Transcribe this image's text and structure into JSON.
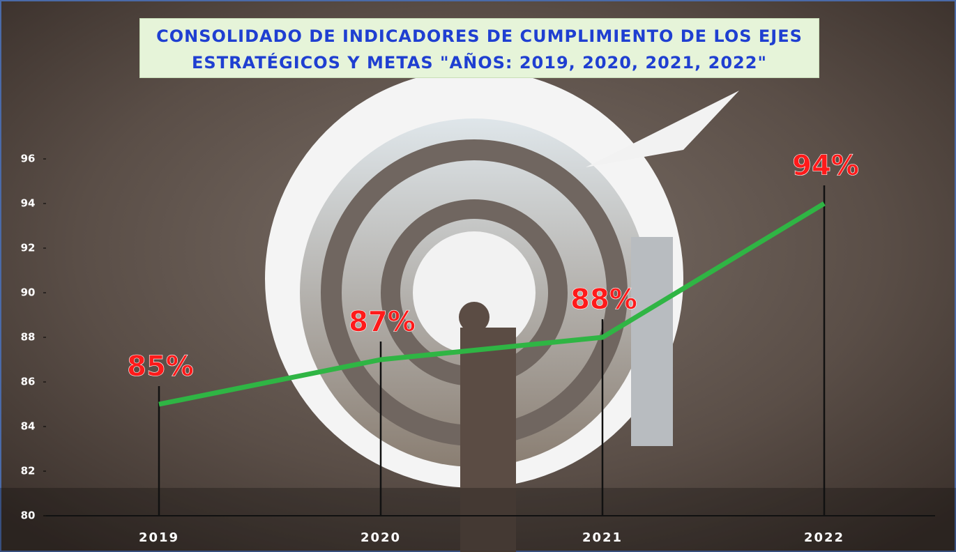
{
  "chart_data": {
    "type": "line",
    "title": "CONSOLIDADO DE INDICADORES DE CUMPLIMIENTO DE LOS EJES ESTRATÉGICOS Y METAS \"AÑOS: 2019, 2020, 2021, 2022\"",
    "categories": [
      "2019",
      "2020",
      "2021",
      "2022"
    ],
    "series": [
      {
        "color": "#2fb544",
        "values": [
          85,
          87,
          88,
          94
        ],
        "value_labels": [
          "85%",
          "87%",
          "88%",
          "94%"
        ]
      }
    ],
    "ylim": [
      80,
      98
    ],
    "yticks": [
      80,
      82,
      84,
      86,
      88,
      90,
      92,
      94,
      96
    ],
    "label_color": "#ff1a1a"
  }
}
